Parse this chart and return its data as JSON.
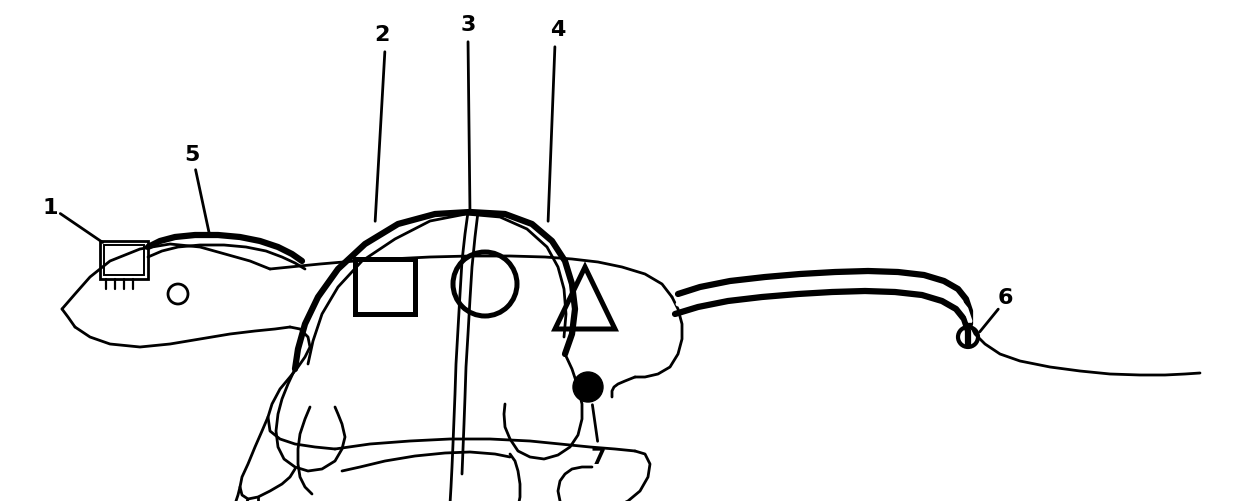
{
  "bg_color": "#ffffff",
  "line_color": "#000000",
  "lw": 2.0,
  "tlw": 4.5,
  "fs": 16,
  "figsize": [
    12.39,
    5.02
  ],
  "dpi": 100
}
